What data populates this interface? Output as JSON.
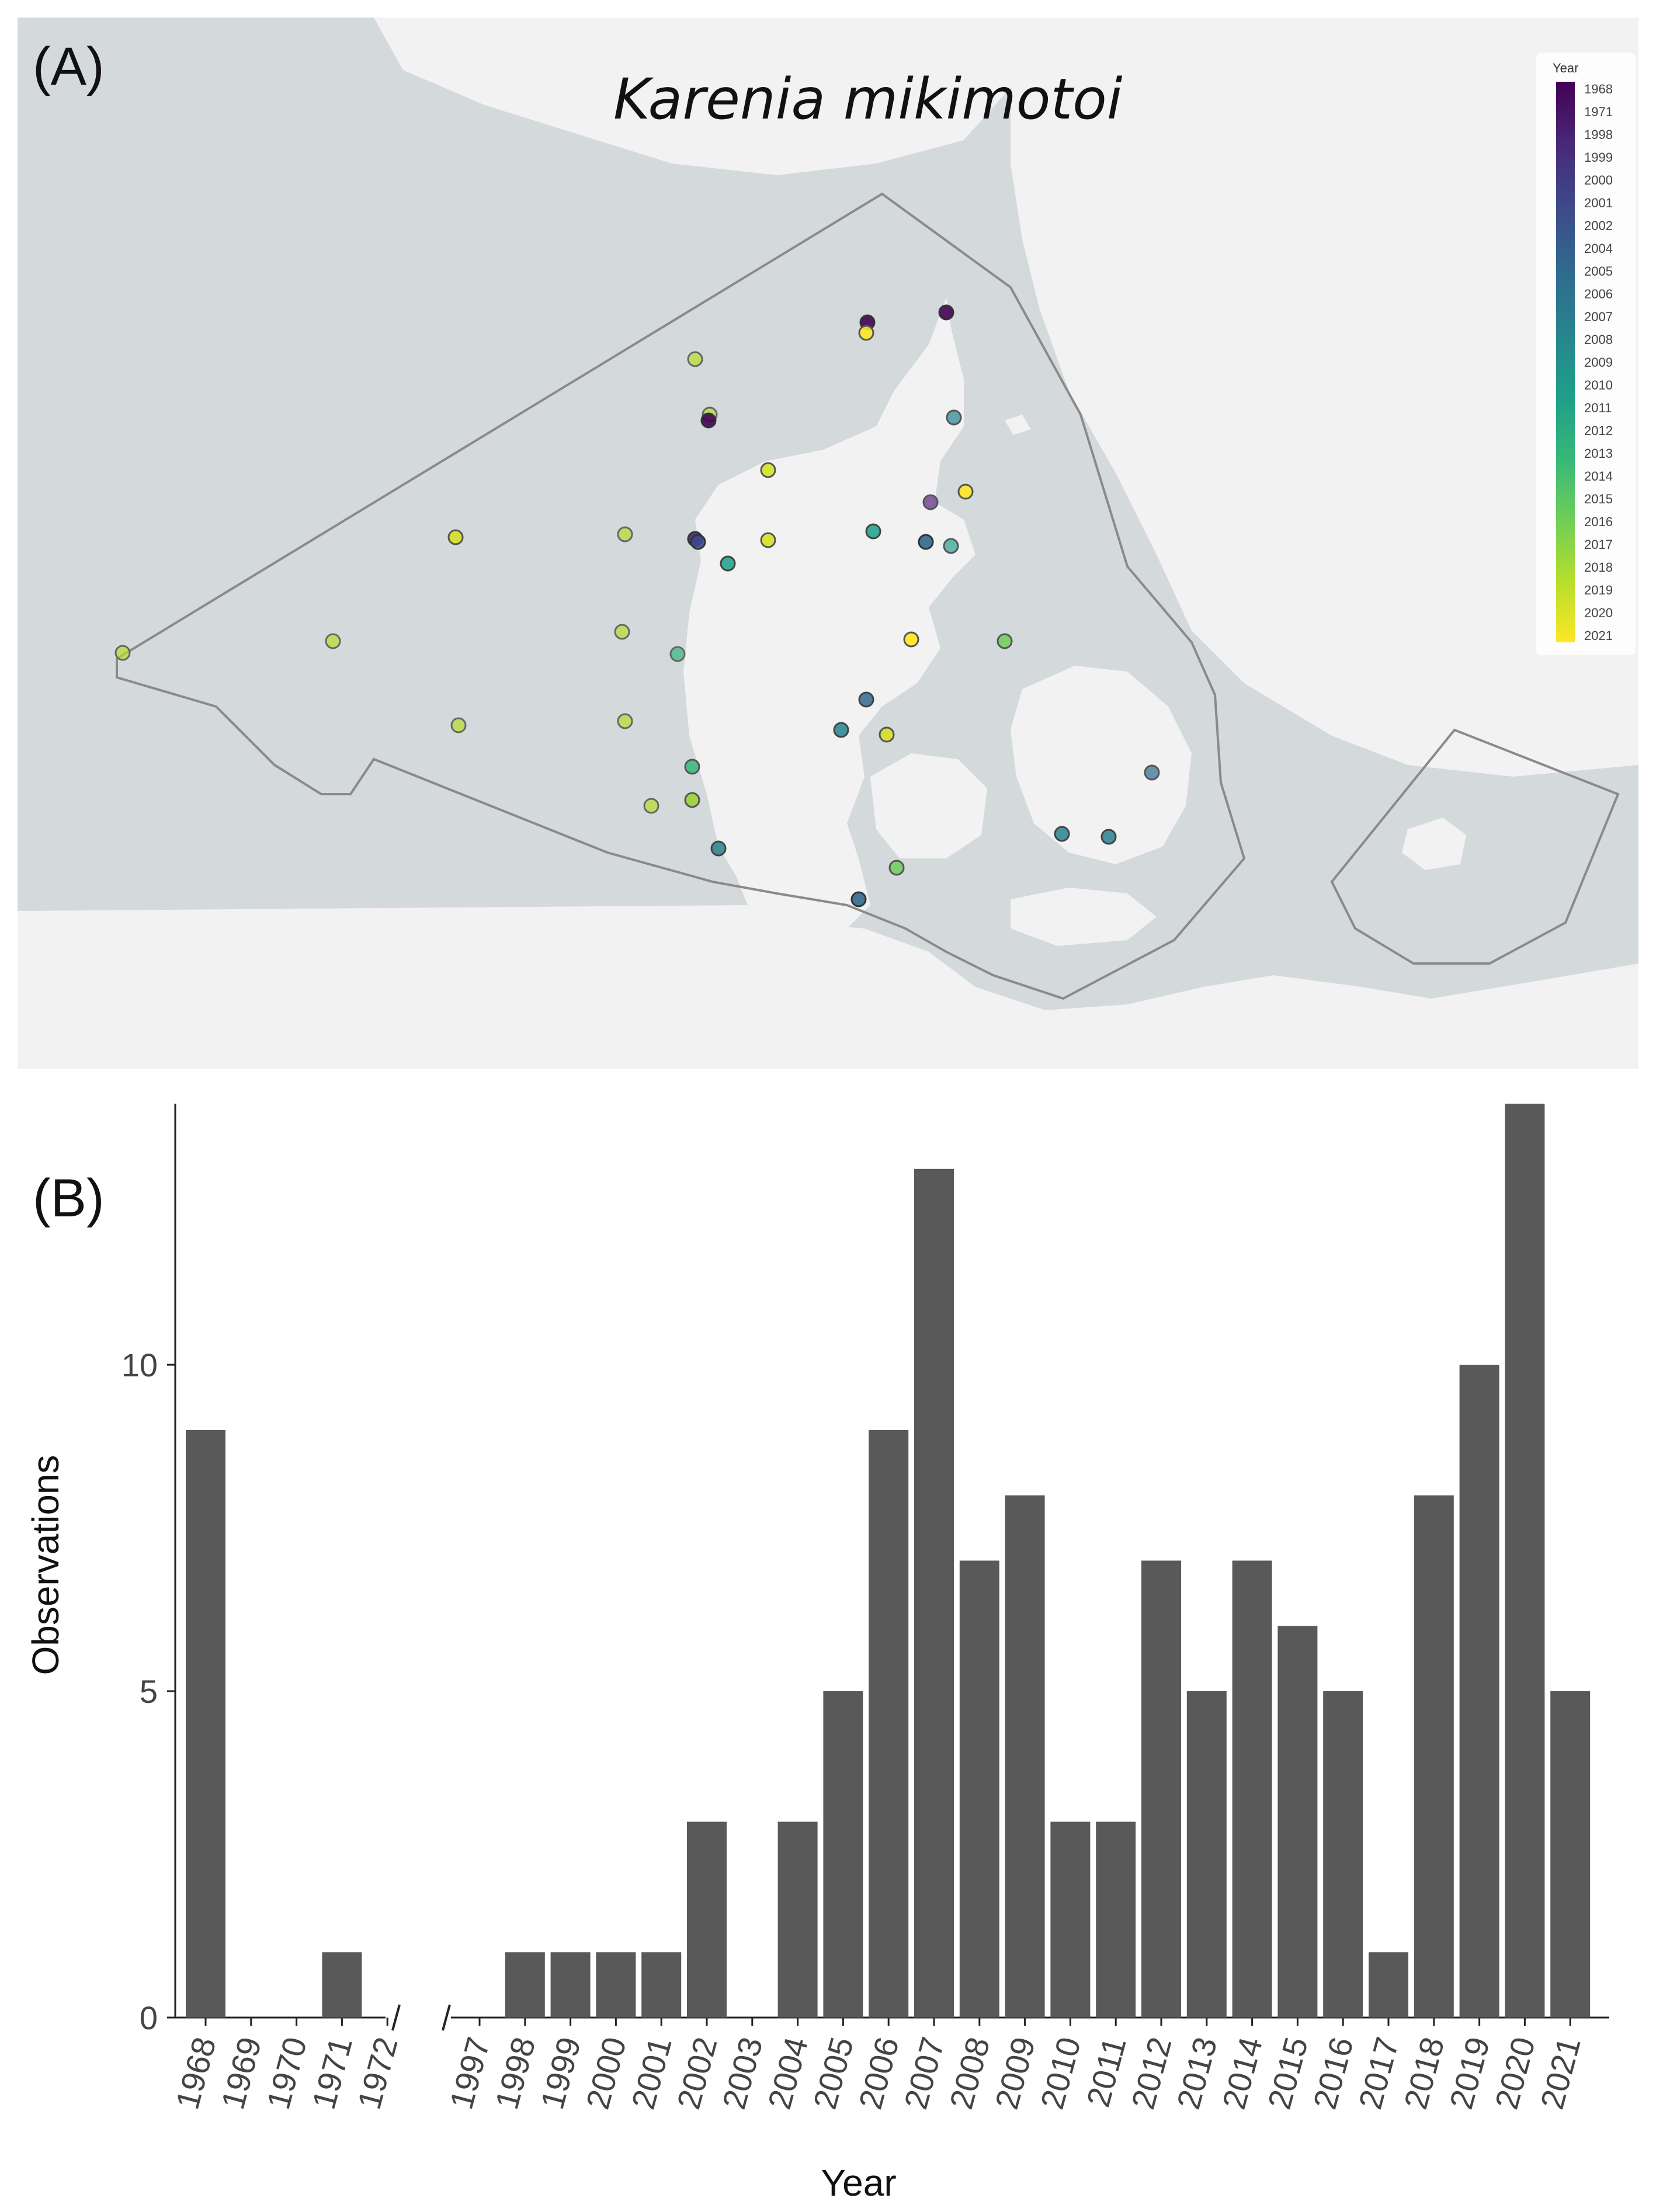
{
  "panel_a_label": "(A)",
  "panel_b_label": "(B)",
  "map": {
    "title": "Karenia mikimotoi",
    "legend_title": "Year",
    "legend_years": [
      "1968",
      "1971",
      "1998",
      "1999",
      "2000",
      "2001",
      "2002",
      "2004",
      "2005",
      "2006",
      "2007",
      "2008",
      "2009",
      "2010",
      "2011",
      "2012",
      "2013",
      "2014",
      "2015",
      "2016",
      "2017",
      "2018",
      "2019",
      "2020",
      "2021"
    ],
    "colors": {
      "sea": "#d4d9dc",
      "land": "#f2f2f2",
      "boundary": "#8a8a8a",
      "viridis": [
        "#440154",
        "#482878",
        "#3e4989",
        "#31688e",
        "#26828e",
        "#1f9e89",
        "#35b779",
        "#6ece58",
        "#b5de2b",
        "#fde725"
      ]
    }
  },
  "chart_data": {
    "type": "bar",
    "xlabel": "Year",
    "ylabel": "Observations",
    "ylim": [
      0,
      14
    ],
    "yticks": [
      0,
      5,
      10
    ],
    "axis_break": "between 1972 and 1997",
    "bar_color": "#595959",
    "categories": [
      "1968",
      "1969",
      "1970",
      "1971",
      "1972",
      "1997",
      "1998",
      "1999",
      "2000",
      "2001",
      "2002",
      "2003",
      "2004",
      "2005",
      "2006",
      "2007",
      "2008",
      "2009",
      "2010",
      "2011",
      "2012",
      "2013",
      "2014",
      "2015",
      "2016",
      "2017",
      "2018",
      "2019",
      "2020",
      "2021"
    ],
    "values": [
      9,
      0,
      0,
      1,
      0,
      0,
      1,
      1,
      1,
      1,
      3,
      0,
      3,
      5,
      9,
      13,
      7,
      8,
      3,
      3,
      7,
      5,
      7,
      6,
      5,
      1,
      8,
      10,
      14,
      5
    ]
  }
}
